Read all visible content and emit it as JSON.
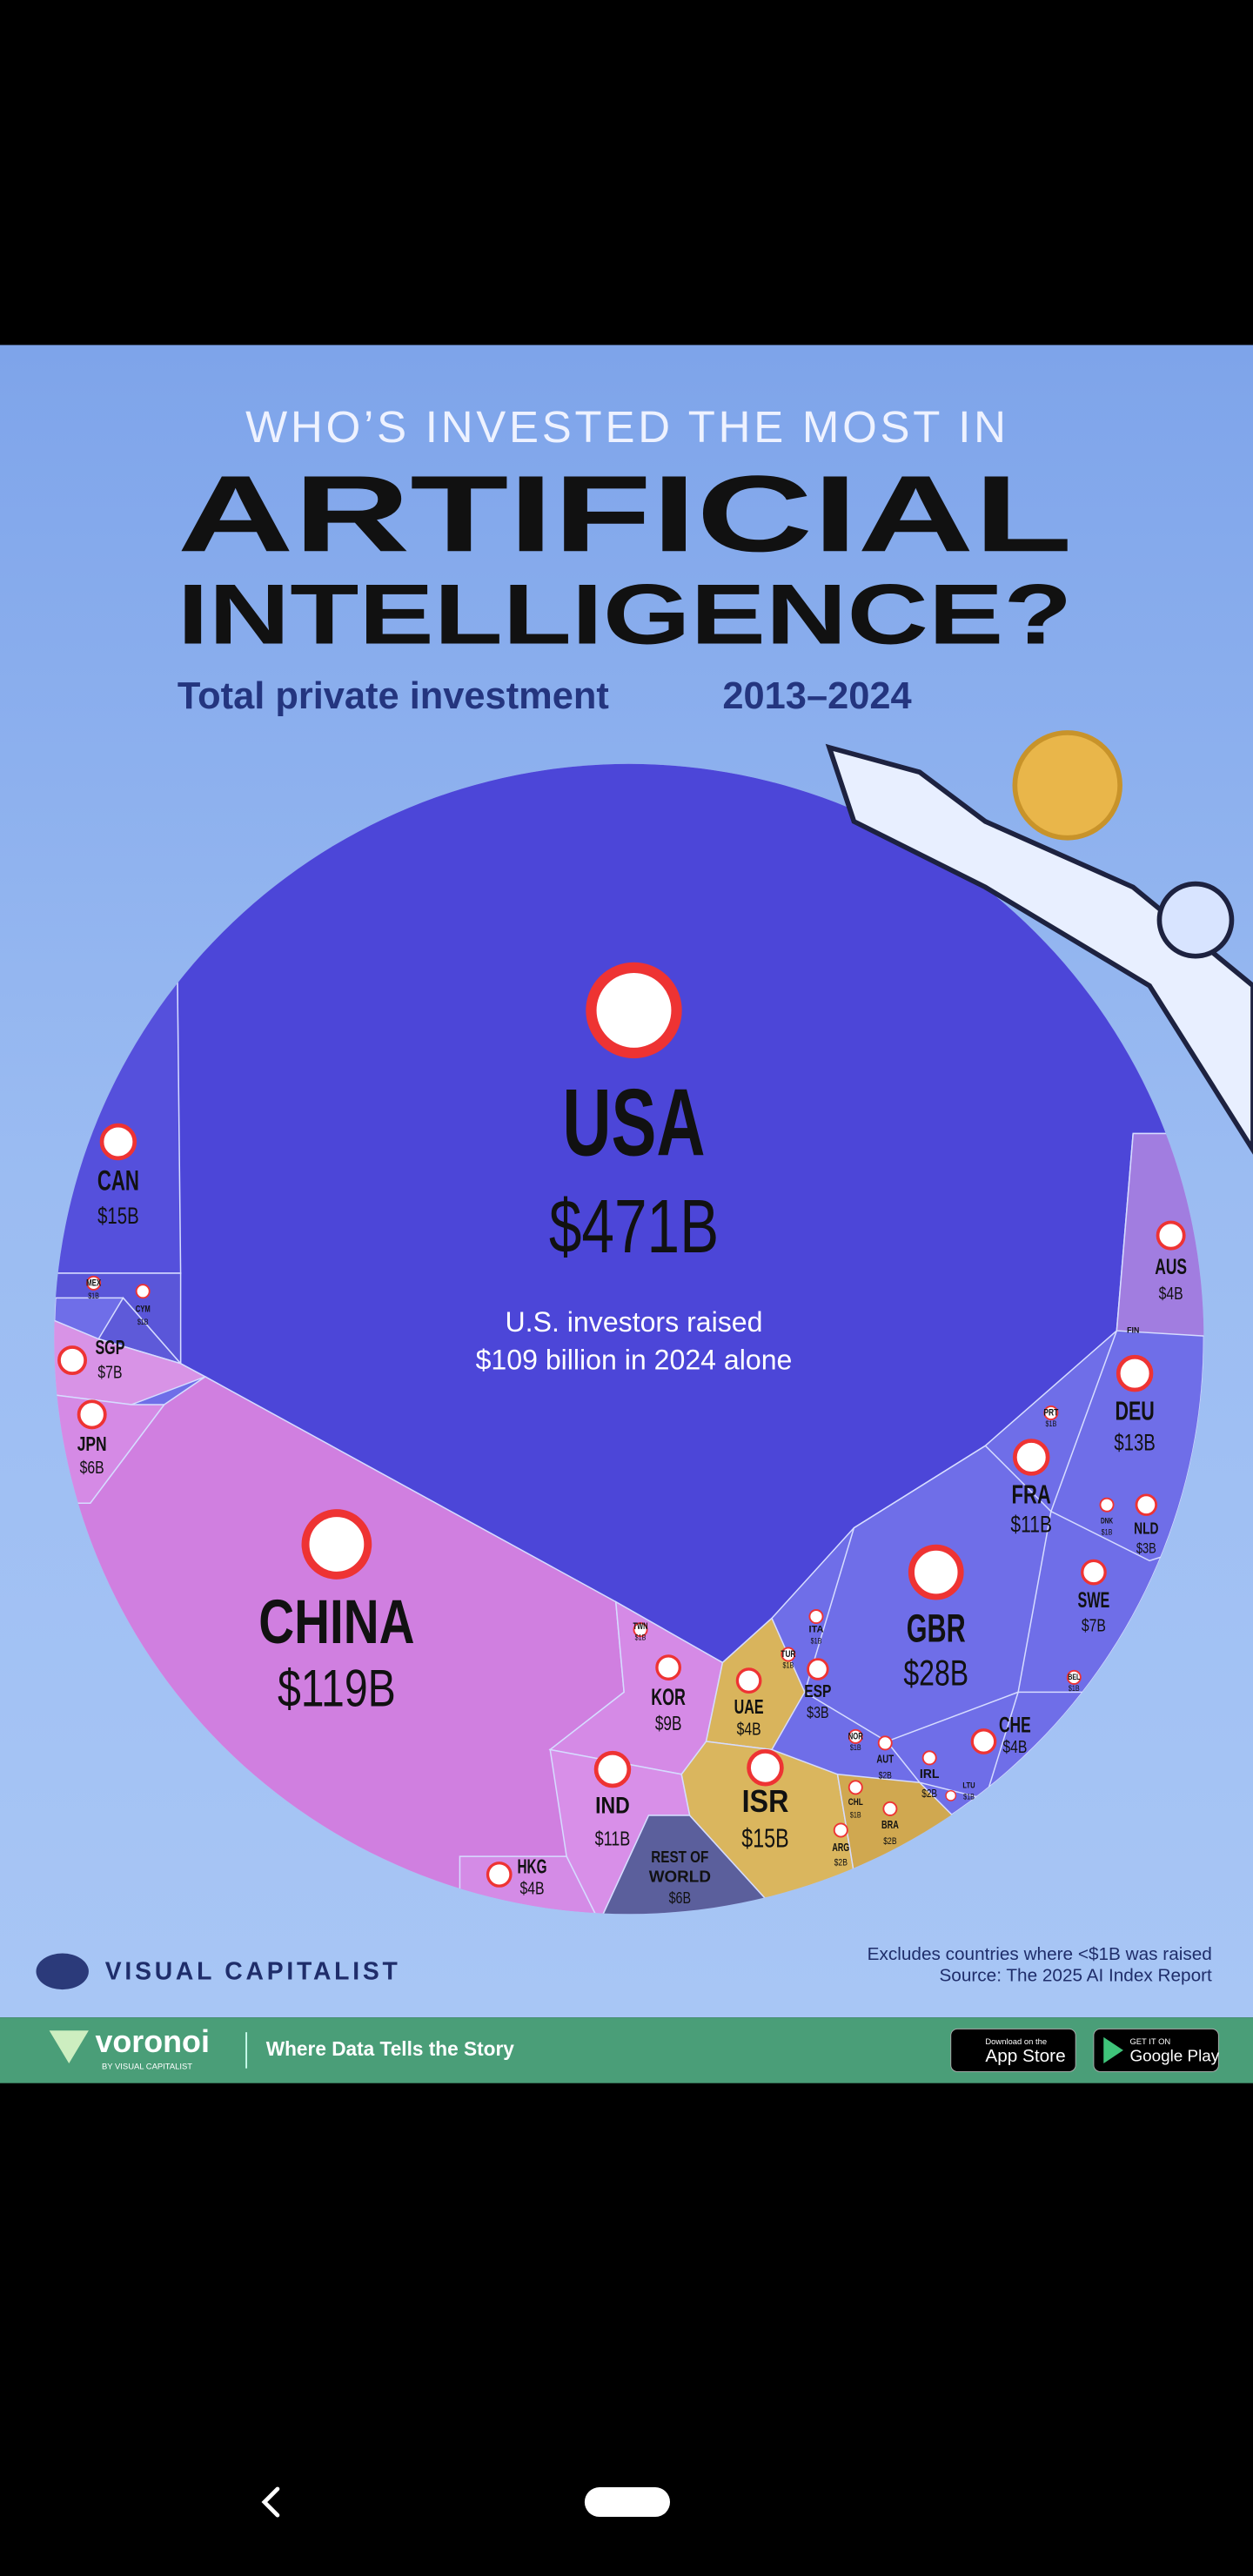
{
  "header": {
    "kicker": "WHO’S INVESTED THE MOST IN",
    "title_line1": "ARTIFICIAL",
    "title_line2": "INTELLIGENCE?",
    "subtitle": "Total private investment",
    "period": "2013–2024"
  },
  "cells": [
    {
      "code": "USA",
      "value": "$471B"
    },
    {
      "code": "CHINA",
      "value": "$119B"
    },
    {
      "code": "CAN",
      "value": "$15B"
    },
    {
      "code": "MEX",
      "value": "$1B"
    },
    {
      "code": "CYM",
      "value": "$1B"
    },
    {
      "code": "SGP",
      "value": "$7B"
    },
    {
      "code": "JPN",
      "value": "$6B"
    },
    {
      "code": "AUS",
      "value": "$4B"
    },
    {
      "code": "FIN"
    },
    {
      "code": "DEU",
      "value": "$13B"
    },
    {
      "code": "PRT",
      "value": "$1B"
    },
    {
      "code": "FRA",
      "value": "$11B"
    },
    {
      "code": "DNK",
      "value": "$1B"
    },
    {
      "code": "NLD",
      "value": "$3B"
    },
    {
      "code": "SWE",
      "value": "$7B"
    },
    {
      "code": "GBR",
      "value": "$28B"
    },
    {
      "code": "BEL",
      "value": "$1B"
    },
    {
      "code": "TWN",
      "value": "$1B"
    },
    {
      "code": "ITA",
      "value": "$1B"
    },
    {
      "code": "TUR",
      "value": "$1B"
    },
    {
      "code": "ESP",
      "value": "$3B"
    },
    {
      "code": "KOR",
      "value": "$9B"
    },
    {
      "code": "UAE",
      "value": "$4B"
    },
    {
      "code": "CHE",
      "value": "$4B"
    },
    {
      "code": "NOR",
      "value": "$1B"
    },
    {
      "code": "AUT",
      "value": "$2B"
    },
    {
      "code": "IRL",
      "value": "$2B"
    },
    {
      "code": "LTU",
      "value": "$1B"
    },
    {
      "code": "ISR",
      "value": "$15B"
    },
    {
      "code": "IND",
      "value": "$11B"
    },
    {
      "code": "CHL",
      "value": "$1B"
    },
    {
      "code": "BRA",
      "value": "$2B"
    },
    {
      "code": "ARG",
      "value": "$2B"
    },
    {
      "code": "HKG",
      "value": "$4B"
    },
    {
      "code": "REST OF",
      "code2": "WORLD",
      "value": "$6B"
    }
  ],
  "usa_note": [
    "U.S. investors raised",
    "$109 billion in 2024 alone"
  ],
  "footer": {
    "brand": "VISUAL CAPITALIST",
    "note": "Excludes countries where <$1B was raised",
    "source": "Source: The 2025 AI Index Report"
  },
  "banner": {
    "app": "voronoi",
    "by": "BY VISUAL CAPITALIST",
    "tagline": "Where Data Tells the Story",
    "appstore_small": "Download on the",
    "appstore": "App Store",
    "play_small": "GET IT ON",
    "play": "Google Play"
  }
}
